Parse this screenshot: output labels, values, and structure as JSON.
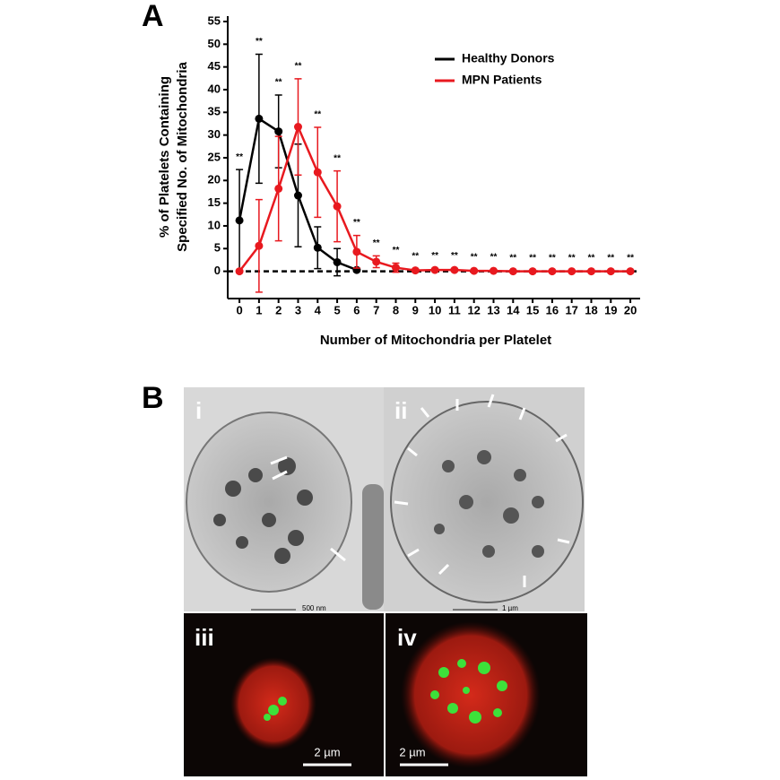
{
  "chart_data": {
    "type": "line",
    "panel_label": "A",
    "x": [
      0,
      1,
      2,
      3,
      4,
      5,
      6,
      7,
      8,
      9,
      10,
      11,
      12,
      13,
      14,
      15,
      16,
      17,
      18,
      19,
      20
    ],
    "series": [
      {
        "name": "Healthy Donors",
        "color": "#000000",
        "values": [
          11.2,
          33.6,
          30.8,
          16.7,
          5.2,
          2.0,
          0.3,
          null,
          null,
          null,
          null,
          null,
          null,
          null,
          null,
          null,
          null,
          null,
          null,
          null,
          null
        ],
        "errors": [
          11.2,
          14.2,
          8.0,
          11.3,
          4.6,
          3.0,
          0.3,
          null,
          null,
          null,
          null,
          null,
          null,
          null,
          null,
          null,
          null,
          null,
          null,
          null,
          null
        ]
      },
      {
        "name": "MPN Patients",
        "color": "#e8191f",
        "values": [
          0,
          5.6,
          18.2,
          31.8,
          21.8,
          14.3,
          4.3,
          2.1,
          0.8,
          0.2,
          0.3,
          0.3,
          0.1,
          0.1,
          0,
          0,
          0,
          0,
          0,
          0,
          0
        ],
        "errors": [
          0,
          10.2,
          11.5,
          10.6,
          9.9,
          7.8,
          3.6,
          1.3,
          1.0,
          0.3,
          0.3,
          0.3,
          0.2,
          0.2,
          0.1,
          0.1,
          0.1,
          0.1,
          0.1,
          0.1,
          0.1
        ]
      }
    ],
    "significance_labels": [
      "**",
      "**",
      "**",
      "**",
      "**",
      "**",
      "**",
      "**",
      "**",
      "**",
      "**",
      "**",
      "**",
      "**",
      "**",
      "**",
      "**",
      "**",
      "**",
      "**",
      "**"
    ],
    "reference_line": 0,
    "xlabel": "Number of Mitochondria per Platelet",
    "ylabel": [
      "% of Platelets Containing",
      "Specified No. of Mitochondria"
    ],
    "xlim": [
      -0.6,
      20.5
    ],
    "ylim": [
      -6,
      55
    ],
    "xticks": [
      0,
      1,
      2,
      3,
      4,
      5,
      6,
      7,
      8,
      9,
      10,
      11,
      12,
      13,
      14,
      15,
      16,
      17,
      18,
      19,
      20
    ],
    "yticks": [
      0,
      5,
      10,
      15,
      20,
      25,
      30,
      35,
      40,
      45,
      50,
      55
    ],
    "legend": "upper right"
  },
  "figure_b": {
    "panel_label": "B",
    "images": [
      {
        "label": "i",
        "scale_bar": "500 nm"
      },
      {
        "label": "ii",
        "scale_bar": "1 µm"
      },
      {
        "label": "iii",
        "scale_bar": "2 µm"
      },
      {
        "label": "iv",
        "scale_bar": "2 µm"
      }
    ]
  }
}
